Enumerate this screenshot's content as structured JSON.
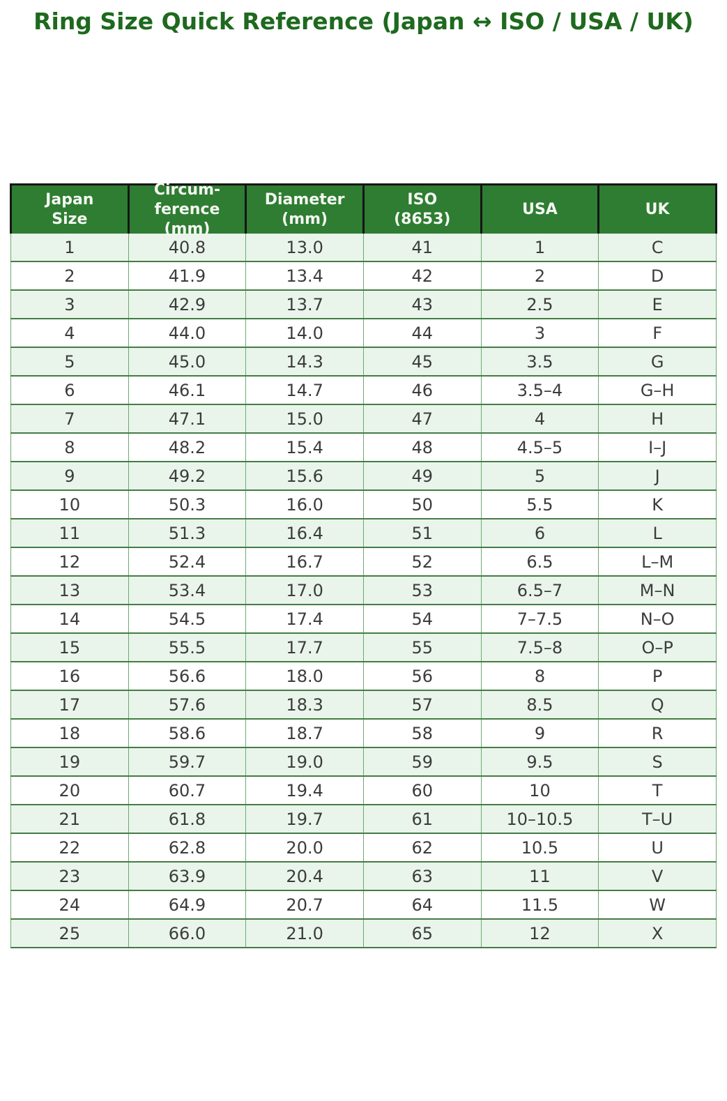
{
  "chart_data": {
    "type": "table",
    "title": "Ring Size Quick Reference (Japan ↔ ISO / USA / UK)",
    "headers": [
      "Japan\nSize",
      "Circum-\nference\n(mm)",
      "Diameter\n(mm)",
      "ISO\n(8653)",
      "USA",
      "UK"
    ],
    "rows": [
      [
        "1",
        "40.8",
        "13.0",
        "41",
        "1",
        "C"
      ],
      [
        "2",
        "41.9",
        "13.4",
        "42",
        "2",
        "D"
      ],
      [
        "3",
        "42.9",
        "13.7",
        "43",
        "2.5",
        "E"
      ],
      [
        "4",
        "44.0",
        "14.0",
        "44",
        "3",
        "F"
      ],
      [
        "5",
        "45.0",
        "14.3",
        "45",
        "3.5",
        "G"
      ],
      [
        "6",
        "46.1",
        "14.7",
        "46",
        "3.5–4",
        "G–H"
      ],
      [
        "7",
        "47.1",
        "15.0",
        "47",
        "4",
        "H"
      ],
      [
        "8",
        "48.2",
        "15.4",
        "48",
        "4.5–5",
        "I–J"
      ],
      [
        "9",
        "49.2",
        "15.6",
        "49",
        "5",
        "J"
      ],
      [
        "10",
        "50.3",
        "16.0",
        "50",
        "5.5",
        "K"
      ],
      [
        "11",
        "51.3",
        "16.4",
        "51",
        "6",
        "L"
      ],
      [
        "12",
        "52.4",
        "16.7",
        "52",
        "6.5",
        "L–M"
      ],
      [
        "13",
        "53.4",
        "17.0",
        "53",
        "6.5–7",
        "M–N"
      ],
      [
        "14",
        "54.5",
        "17.4",
        "54",
        "7–7.5",
        "N–O"
      ],
      [
        "15",
        "55.5",
        "17.7",
        "55",
        "7.5–8",
        "O–P"
      ],
      [
        "16",
        "56.6",
        "18.0",
        "56",
        "8",
        "P"
      ],
      [
        "17",
        "57.6",
        "18.3",
        "57",
        "8.5",
        "Q"
      ],
      [
        "18",
        "58.6",
        "18.7",
        "58",
        "9",
        "R"
      ],
      [
        "19",
        "59.7",
        "19.0",
        "59",
        "9.5",
        "S"
      ],
      [
        "20",
        "60.7",
        "19.4",
        "60",
        "10",
        "T"
      ],
      [
        "21",
        "61.8",
        "19.7",
        "61",
        "10–10.5",
        "T–U"
      ],
      [
        "22",
        "62.8",
        "20.0",
        "62",
        "10.5",
        "U"
      ],
      [
        "23",
        "63.9",
        "20.4",
        "63",
        "11",
        "V"
      ],
      [
        "24",
        "64.9",
        "20.7",
        "64",
        "11.5",
        "W"
      ],
      [
        "25",
        "66.0",
        "21.0",
        "65",
        "12",
        "X"
      ]
    ],
    "layout": {
      "grid": true,
      "striped_rows": true,
      "header_position": "top"
    }
  },
  "colors": {
    "title_text": "#1e691e",
    "header_bg": "#2e7d32",
    "header_text": "#f4f7f1",
    "header_border": "#161616",
    "row_odd_bg": "#e9f5ea",
    "row_even_bg": "#ffffff",
    "row_border_h": "#447c44",
    "row_border_v": "#6fa96f",
    "body_text": "#3c3c3c"
  }
}
